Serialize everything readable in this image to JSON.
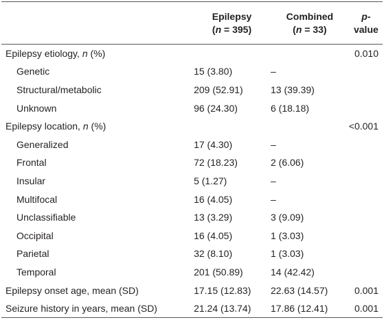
{
  "table": {
    "columns": [
      {
        "name": []
      },
      {
        "name": [
          {
            "text": "Epilepsy"
          }
        ],
        "sub": [
          {
            "text": "("
          },
          {
            "text": "n",
            "italic": true
          },
          {
            "text": " = 395)"
          }
        ]
      },
      {
        "name": [
          {
            "text": "Combined"
          }
        ],
        "sub": [
          {
            "text": "("
          },
          {
            "text": "n",
            "italic": true
          },
          {
            "text": " = 33)"
          }
        ]
      },
      {
        "name": [
          {
            "text": "p",
            "italic": true
          },
          {
            "text": "-value"
          }
        ]
      }
    ],
    "rows": [
      {
        "label": [
          {
            "text": "Epilepsy etiology, "
          },
          {
            "text": "n",
            "italic": true
          },
          {
            "text": " (%)"
          }
        ],
        "level": 0,
        "cells": [
          null,
          null,
          "0.010"
        ]
      },
      {
        "label": [
          {
            "text": "Genetic"
          }
        ],
        "level": 1,
        "cells": [
          "15 (3.80)",
          "–",
          null
        ]
      },
      {
        "label": [
          {
            "text": "Structural/metabolic"
          }
        ],
        "level": 1,
        "cells": [
          "209 (52.91)",
          "13 (39.39)",
          null
        ]
      },
      {
        "label": [
          {
            "text": "Unknown"
          }
        ],
        "level": 1,
        "cells": [
          "96 (24.30)",
          "6 (18.18)",
          null
        ]
      },
      {
        "label": [
          {
            "text": "Epilepsy location, "
          },
          {
            "text": "n",
            "italic": true
          },
          {
            "text": " (%)"
          }
        ],
        "level": 0,
        "cells": [
          null,
          null,
          "<0.001"
        ]
      },
      {
        "label": [
          {
            "text": "Generalized"
          }
        ],
        "level": 1,
        "cells": [
          "17 (4.30)",
          "–",
          null
        ]
      },
      {
        "label": [
          {
            "text": "Frontal"
          }
        ],
        "level": 1,
        "cells": [
          "72 (18.23)",
          "2 (6.06)",
          null
        ]
      },
      {
        "label": [
          {
            "text": "Insular"
          }
        ],
        "level": 1,
        "cells": [
          "5 (1.27)",
          "–",
          null
        ]
      },
      {
        "label": [
          {
            "text": "Multifocal"
          }
        ],
        "level": 1,
        "cells": [
          "16 (4.05)",
          "–",
          null
        ]
      },
      {
        "label": [
          {
            "text": "Unclassifiable"
          }
        ],
        "level": 1,
        "cells": [
          "13 (3.29)",
          "3 (9.09)",
          null
        ]
      },
      {
        "label": [
          {
            "text": "Occipital"
          }
        ],
        "level": 1,
        "cells": [
          "16 (4.05)",
          "1 (3.03)",
          null
        ]
      },
      {
        "label": [
          {
            "text": "Parietal"
          }
        ],
        "level": 1,
        "cells": [
          "32 (8.10)",
          "1 (3.03)",
          null
        ]
      },
      {
        "label": [
          {
            "text": "Temporal"
          }
        ],
        "level": 1,
        "cells": [
          "201 (50.89)",
          "14 (42.42)",
          null
        ]
      },
      {
        "label": [
          {
            "text": "Epilepsy onset age, mean (SD)"
          }
        ],
        "level": 0,
        "cells": [
          "17.15 (12.83)",
          "22.63 (14.57)",
          "0.001"
        ]
      },
      {
        "label": [
          {
            "text": "Seizure history in years, mean (SD)"
          }
        ],
        "level": 0,
        "cells": [
          "21.24 (13.74)",
          "17.86 (12.41)",
          "0.001"
        ]
      }
    ]
  }
}
